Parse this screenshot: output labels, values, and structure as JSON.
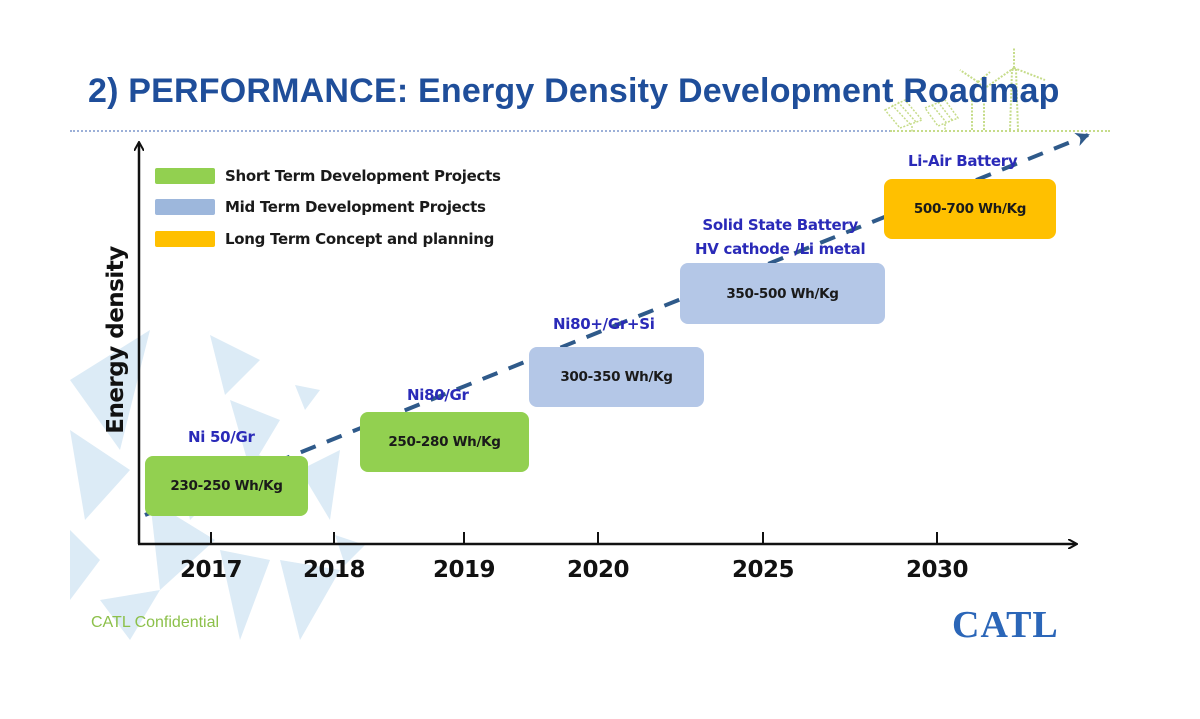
{
  "slide": {
    "title": "2) PERFORMANCE: Energy Density Development Roadmap",
    "footer_left": "CATL Confidential",
    "logo_text": "CATL",
    "decorations": [
      "wind-turbine-icon",
      "solar-panel-icon",
      "background-triangles"
    ]
  },
  "colors": {
    "title": "#1f4e9a",
    "short_term": "#92d050",
    "mid_term": "#b4c7e7",
    "long_term": "#ffc000",
    "tech_label": "#2a2ab8",
    "trend_line": "#2f5a8a",
    "footer": "#8cc04a",
    "logo": "#2b66b8"
  },
  "chart_data": {
    "type": "timeline",
    "title": "2) PERFORMANCE: Energy Density Development Roadmap",
    "xlabel": "",
    "ylabel": "Energy density",
    "x_ticks": [
      "2017",
      "2018",
      "2019",
      "2020",
      "2025",
      "2030"
    ],
    "legend": {
      "placement": "top-left",
      "entries": [
        {
          "label": "Short Term Development Projects",
          "category": "short_term"
        },
        {
          "label": "Mid Term Development Projects",
          "category": "mid_term"
        },
        {
          "label": "Long Term Concept and planning",
          "category": "long_term"
        }
      ]
    },
    "grid": false,
    "trend": "dashed arrow rising left to right",
    "milestones": [
      {
        "technology": "Ni 50/Gr",
        "range": "230-250 Wh/Kg",
        "min": 230,
        "max": 250,
        "period": "2017",
        "category": "short_term"
      },
      {
        "technology": "Ni80/Gr",
        "range": "250-280 Wh/Kg",
        "min": 250,
        "max": 280,
        "period": "2018-2019",
        "category": "short_term"
      },
      {
        "technology": "Ni80+/Gr+Si",
        "range": "300-350 Wh/Kg",
        "min": 300,
        "max": 350,
        "period": "2019-2020",
        "category": "mid_term"
      },
      {
        "technology": "Solid State Battery\nHV cathode /Li metal",
        "technology_lines": [
          "Solid State Battery",
          "HV cathode /Li metal"
        ],
        "range": "350-500 Wh/Kg",
        "min": 350,
        "max": 500,
        "period": "2025",
        "category": "mid_term"
      },
      {
        "technology": "Li-Air Battery",
        "range": "500-700 Wh/Kg",
        "min": 500,
        "max": 700,
        "period": "2030",
        "category": "long_term"
      }
    ]
  }
}
